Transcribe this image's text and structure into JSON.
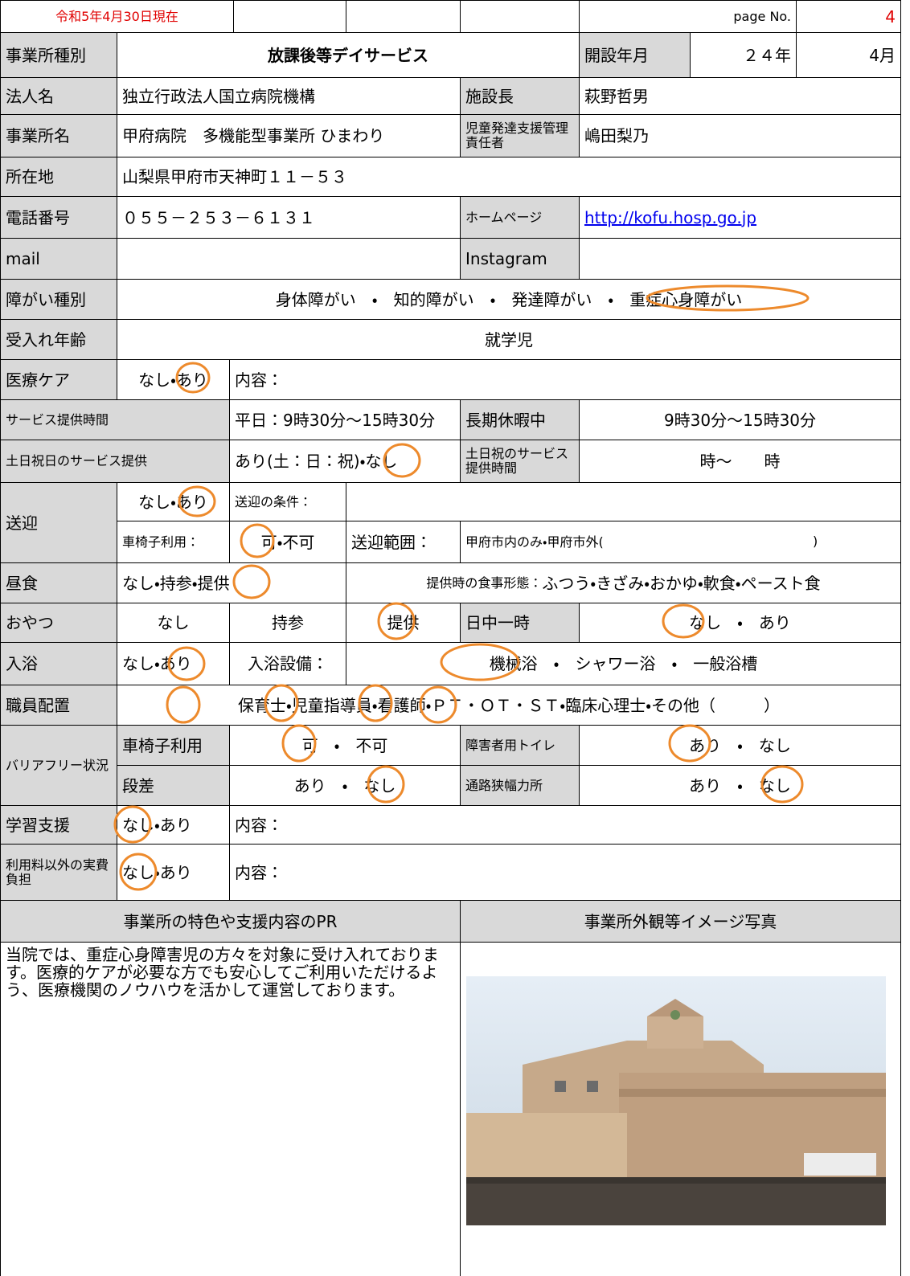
{
  "header": {
    "as_of": "令和5年4月30日現在",
    "page_label": "page No.",
    "page_number": "4"
  },
  "fields": {
    "business_type": {
      "label": "事業所種別",
      "value": "放課後等デイサービス"
    },
    "opened": {
      "label": "開設年月",
      "year": "２４年",
      "month": "4月"
    },
    "corporation": {
      "label": "法人名",
      "value": "独立行政法人国立病院機構"
    },
    "director": {
      "label": "施設長",
      "value": "萩野哲男"
    },
    "office_name": {
      "label": "事業所名",
      "value": "甲府病院　多機能型事業所 ひまわり"
    },
    "manager": {
      "label": "児童発達支援管理責任者",
      "value": "嶋田梨乃"
    },
    "address": {
      "label": "所在地",
      "value": "山梨県甲府市天神町１１－５３"
    },
    "phone": {
      "label": "電話番号",
      "value": "０５５－２５３－６１３１"
    },
    "homepage": {
      "label": "ホームページ",
      "value": "http://kofu.hosp.go.jp"
    },
    "mail": {
      "label": "mail"
    },
    "instagram": {
      "label": "Instagram"
    },
    "disability": {
      "label": "障がい種別",
      "value": "身体障がい　・　知的障がい　・　発達障がい　・　重症心身障がい"
    },
    "age": {
      "label": "受入れ年齢",
      "value": "就学児"
    },
    "medical_care": {
      "label": "医療ケア",
      "options": "なし・あり",
      "detail_label": "内容："
    },
    "service_hours": {
      "label": "サービス提供時間",
      "weekday": "平日：9時30分～15時30分",
      "holiday_label": "長期休暇中",
      "holiday": "9時30分～15時30分"
    },
    "weekend": {
      "label": "土日祝日のサービス提供",
      "options": "あり(土：日：祝)・なし",
      "hours_label": "土日祝のサービス提供時間",
      "hours": "時～　　時"
    },
    "transport": {
      "label": "送迎",
      "options": "なし・あり",
      "condition_label": "送迎の条件：",
      "wheelchair_label": "車椅子利用：",
      "wheelchair": "可・不可",
      "range_label": "送迎範囲：",
      "range": "甲府市内のみ・甲府市外(",
      "range_close": ")"
    },
    "lunch": {
      "label": "昼食",
      "options": "なし・持参・提供",
      "form_label": "提供時の食事形態：",
      "form": "ふつう・きざみ・おかゆ・軟食・ペースト食"
    },
    "snack": {
      "label": "おやつ",
      "none": "なし",
      "bring": "持参",
      "provide": "提供",
      "temp_label": "日中一時",
      "temp": "なし　・　あり"
    },
    "bath": {
      "label": "入浴",
      "options": "なし・あり",
      "equipment_label": "入浴設備：",
      "equipment": "機械浴　・　シャワー浴　・　一般浴槽"
    },
    "staff": {
      "label": "職員配置",
      "value": "保育士・児童指導員・看護師・ＰＴ・ＯＴ・ＳＴ・臨床心理士・その他（　　　）"
    },
    "barrier_free": {
      "label": "バリアフリー状況",
      "wheelchair_label": "車椅子利用",
      "wheelchair": "可　・　不可",
      "toilet_label": "障害者用トイレ",
      "toilet": "あり　・　なし",
      "step_label": "段差",
      "step": "あり　・　なし",
      "narrow_label": "通路狭幅力所",
      "narrow": "あり　・　なし"
    },
    "learning": {
      "label": "学習支援",
      "options": "なし・あり",
      "detail_label": "内容："
    },
    "expenses": {
      "label": "利用料以外の実費負担",
      "options": "なし・あり",
      "detail_label": "内容："
    }
  },
  "pr": {
    "title": "事業所の特色や支援内容のPR",
    "text": "当院では、重症心身障害児の方々を対象に受け入れております。医療的ケアが必要な方でも安心してご利用いただけるよう、医療機関のノウハウを活かして運営しております。"
  },
  "photo": {
    "title": "事業所外観等イメージ写真"
  }
}
